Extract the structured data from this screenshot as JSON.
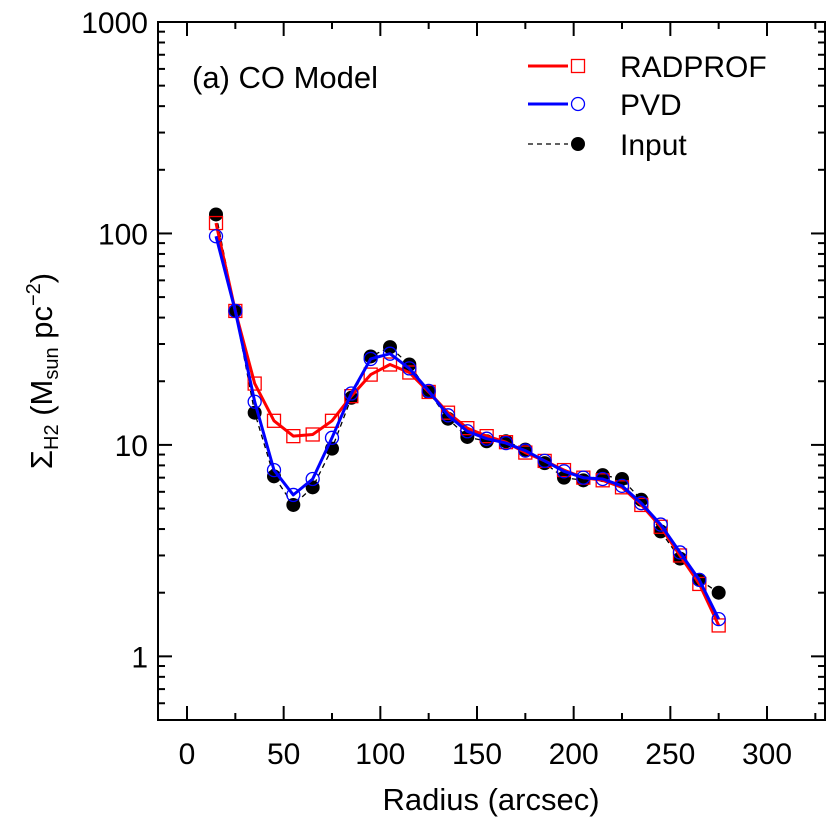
{
  "chart_data": {
    "type": "line",
    "panel_label": "(a) CO Model",
    "xlabel": "Radius (arcsec)",
    "ylabel": {
      "prefix": "Σ",
      "prefix_sub": "H2",
      "mid": " (M",
      "mid_sub": "sun",
      "tail": " pc",
      "tail_sup": "−2",
      "end": ")"
    },
    "xlim": [
      -15,
      330
    ],
    "ylim": [
      0.5,
      1000
    ],
    "yscale": "log",
    "x_ticks": [
      0,
      50,
      100,
      150,
      200,
      250,
      300
    ],
    "x_tick_labels": [
      "0",
      "50",
      "100",
      "150",
      "200",
      "250",
      "300"
    ],
    "y_ticks": [
      1,
      10,
      100,
      1000
    ],
    "y_tick_labels": [
      "1",
      "10",
      "100",
      "1000"
    ],
    "legend_position": "top-right",
    "series": [
      {
        "name": "RADPROF",
        "color": "#ff0000",
        "line": "solid",
        "marker": "open-square",
        "x": [
          15,
          25,
          35,
          45,
          55,
          65,
          75,
          85,
          95,
          105,
          115,
          125,
          135,
          145,
          155,
          165,
          175,
          185,
          195,
          205,
          215,
          225,
          235,
          245,
          255,
          265,
          275
        ],
        "y": [
          112,
          43,
          19.5,
          13,
          11,
          11.2,
          13,
          17,
          21.5,
          24,
          22,
          17.8,
          14.2,
          12,
          11,
          10.3,
          9.2,
          8.4,
          7.6,
          7.0,
          6.8,
          6.3,
          5.2,
          4.1,
          3.0,
          2.2,
          1.4
        ]
      },
      {
        "name": "PVD",
        "color": "#0000ff",
        "line": "solid",
        "marker": "open-circle",
        "x": [
          15,
          25,
          35,
          45,
          55,
          65,
          75,
          85,
          95,
          105,
          115,
          125,
          135,
          145,
          155,
          165,
          175,
          185,
          195,
          205,
          215,
          225,
          235,
          245,
          255,
          265,
          275
        ],
        "y": [
          97,
          43,
          16,
          7.6,
          5.8,
          6.9,
          10.8,
          17.5,
          25.5,
          27,
          23,
          18,
          13.8,
          11.6,
          10.7,
          10.2,
          9.4,
          8.4,
          7.5,
          7.0,
          6.9,
          6.4,
          5.3,
          4.2,
          3.1,
          2.3,
          1.5
        ]
      },
      {
        "name": "Input",
        "color": "#000000",
        "line": "dashed",
        "marker": "filled-circle",
        "x": [
          15,
          25,
          35,
          45,
          55,
          65,
          75,
          85,
          95,
          105,
          115,
          125,
          135,
          145,
          155,
          165,
          175,
          185,
          195,
          205,
          215,
          225,
          235,
          245,
          255,
          265,
          275
        ],
        "y": [
          123,
          43,
          14.2,
          7.1,
          5.2,
          6.3,
          9.6,
          16.7,
          26.2,
          29,
          24,
          17.8,
          13.3,
          10.9,
          10.4,
          10.4,
          9.5,
          8.2,
          7.0,
          6.8,
          7.2,
          6.9,
          5.5,
          3.9,
          2.9,
          2.3,
          2.0
        ]
      }
    ]
  }
}
